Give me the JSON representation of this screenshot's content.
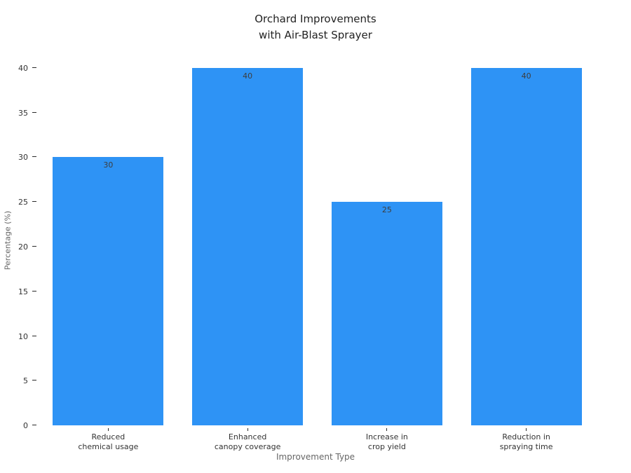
{
  "chart_data": {
    "type": "bar",
    "title_lines": [
      "Orchard Improvements",
      "with Air-Blast Sprayer"
    ],
    "categories": [
      [
        "Reduced",
        "chemical usage"
      ],
      [
        "Enhanced",
        "canopy coverage"
      ],
      [
        "Increase in",
        "crop yield"
      ],
      [
        "Reduction in",
        "spraying time"
      ]
    ],
    "values": [
      30,
      40,
      25,
      40
    ],
    "xlabel": "Improvement Type",
    "ylabel": "Percentage (%)",
    "yticks": [
      0,
      5,
      10,
      15,
      20,
      25,
      30,
      35,
      40
    ],
    "ylim": [
      0,
      41.33
    ],
    "bar_color": "#2E93F5",
    "value_label_color": "#3d3d3d",
    "grid": false,
    "legend_position": "none"
  }
}
